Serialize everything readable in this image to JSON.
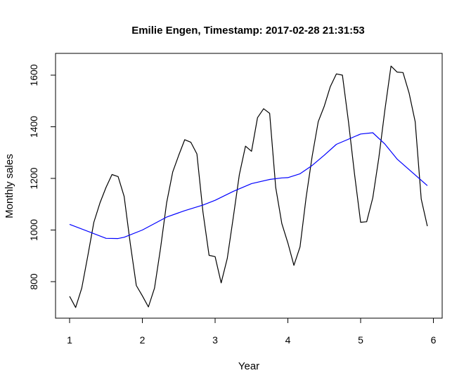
{
  "chart_data": {
    "type": "line",
    "title": "Emilie Engen, Timestamp: 2017-02-28 21:31:53",
    "xlabel": "Year",
    "ylabel": "Monthly sales",
    "xlim": [
      1,
      6
    ],
    "ylim": [
      700,
      1640
    ],
    "x_ticks": [
      1,
      2,
      3,
      4,
      5,
      6
    ],
    "x_tick_labels": [
      "1",
      "2",
      "3",
      "4",
      "5",
      "6"
    ],
    "y_ticks": [
      800,
      1000,
      1200,
      1400,
      1600
    ],
    "y_tick_labels": [
      "800",
      "1000",
      "1200",
      "1400",
      "1600"
    ],
    "grid": false,
    "legend": "none",
    "series": [
      {
        "color": "#000000",
        "x": [
          1.0,
          1.083,
          1.167,
          1.25,
          1.333,
          1.417,
          1.5,
          1.583,
          1.667,
          1.75,
          1.833,
          1.917,
          2.0,
          2.083,
          2.167,
          2.25,
          2.333,
          2.417,
          2.5,
          2.583,
          2.667,
          2.75,
          2.833,
          2.917,
          3.0,
          3.083,
          3.167,
          3.25,
          3.333,
          3.417,
          3.5,
          3.583,
          3.667,
          3.75,
          3.833,
          3.917,
          4.0,
          4.083,
          4.167,
          4.25,
          4.333,
          4.417,
          4.5,
          4.583,
          4.667,
          4.75,
          4.833,
          4.917,
          5.0,
          5.083,
          5.167,
          5.25,
          5.333,
          5.417,
          5.5,
          5.583,
          5.667,
          5.75,
          5.833,
          5.917
        ],
        "values": [
          743,
          700,
          775,
          900,
          1030,
          1105,
          1165,
          1215,
          1207,
          1130,
          950,
          785,
          745,
          702,
          775,
          930,
          1105,
          1225,
          1290,
          1350,
          1340,
          1295,
          1070,
          902,
          897,
          795,
          890,
          1050,
          1215,
          1325,
          1305,
          1435,
          1470,
          1452,
          1165,
          1025,
          950,
          863,
          935,
          1125,
          1285,
          1420,
          1480,
          1555,
          1605,
          1600,
          1420,
          1215,
          1030,
          1032,
          1125,
          1280,
          1465,
          1635,
          1612,
          1610,
          1530,
          1420,
          1120,
          1015
        ]
      },
      {
        "color": "#0000ff",
        "x": [
          1.0,
          1.5,
          1.667,
          1.75,
          2.0,
          2.333,
          2.583,
          2.833,
          3.0,
          3.25,
          3.5,
          3.75,
          3.917,
          4.0,
          4.167,
          4.333,
          4.5,
          4.667,
          5.0,
          5.167,
          5.333,
          5.5,
          5.917
        ],
        "values": [
          1022,
          968,
          967,
          972,
          1000,
          1050,
          1075,
          1097,
          1115,
          1150,
          1180,
          1196,
          1202,
          1203,
          1218,
          1250,
          1290,
          1332,
          1372,
          1377,
          1333,
          1275,
          1172
        ]
      }
    ]
  }
}
